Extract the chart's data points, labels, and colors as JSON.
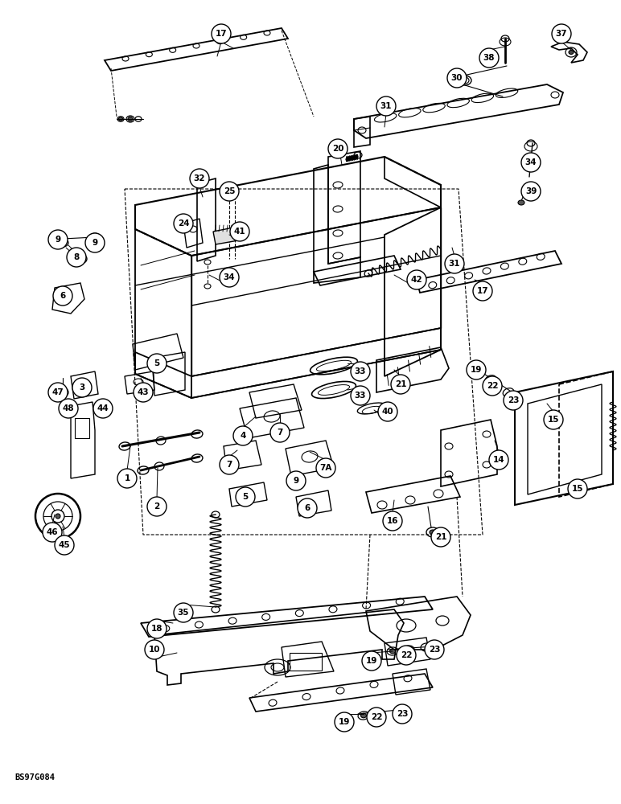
{
  "watermark": "BS97G084",
  "bg_color": "#ffffff",
  "lc": "#000000",
  "figsize": [
    7.72,
    10.0
  ],
  "dpi": 100,
  "callouts": [
    [
      17,
      275,
      42
    ],
    [
      37,
      698,
      42
    ],
    [
      38,
      608,
      72
    ],
    [
      30,
      568,
      97
    ],
    [
      34,
      660,
      202
    ],
    [
      39,
      660,
      238
    ],
    [
      31,
      480,
      132
    ],
    [
      31,
      565,
      328
    ],
    [
      20,
      420,
      185
    ],
    [
      42,
      518,
      348
    ],
    [
      17,
      600,
      362
    ],
    [
      32,
      248,
      222
    ],
    [
      25,
      285,
      238
    ],
    [
      41,
      298,
      288
    ],
    [
      24,
      228,
      278
    ],
    [
      34,
      285,
      345
    ],
    [
      9,
      72,
      298
    ],
    [
      8,
      95,
      320
    ],
    [
      9,
      118,
      302
    ],
    [
      6,
      78,
      368
    ],
    [
      5,
      195,
      452
    ],
    [
      3,
      102,
      482
    ],
    [
      43,
      178,
      488
    ],
    [
      47,
      72,
      488
    ],
    [
      48,
      85,
      508
    ],
    [
      44,
      128,
      508
    ],
    [
      21,
      498,
      478
    ],
    [
      33,
      448,
      462
    ],
    [
      33,
      448,
      492
    ],
    [
      40,
      482,
      512
    ],
    [
      7,
      348,
      538
    ],
    [
      4,
      302,
      542
    ],
    [
      7,
      285,
      578
    ],
    [
      9,
      368,
      598
    ],
    [
      5,
      305,
      618
    ],
    [
      6,
      382,
      632
    ],
    [
      "7A",
      405,
      582
    ],
    [
      1,
      158,
      595
    ],
    [
      2,
      195,
      630
    ],
    [
      19,
      592,
      460
    ],
    [
      22,
      612,
      480
    ],
    [
      23,
      638,
      498
    ],
    [
      15,
      688,
      522
    ],
    [
      15,
      718,
      608
    ],
    [
      14,
      620,
      572
    ],
    [
      16,
      488,
      648
    ],
    [
      21,
      548,
      668
    ],
    [
      46,
      65,
      662
    ],
    [
      45,
      80,
      678
    ],
    [
      35,
      228,
      762
    ],
    [
      18,
      195,
      782
    ],
    [
      10,
      192,
      808
    ],
    [
      19,
      462,
      822
    ],
    [
      22,
      505,
      815
    ],
    [
      23,
      540,
      808
    ],
    [
      19,
      428,
      898
    ],
    [
      22,
      468,
      892
    ],
    [
      23,
      500,
      888
    ]
  ]
}
